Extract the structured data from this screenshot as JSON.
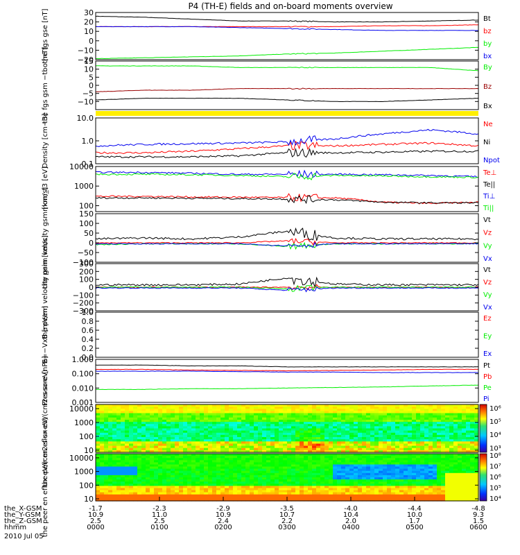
{
  "title": "P4 (TH-E) fields and on-board moments overview",
  "date": "2010 Jul 05",
  "colors": {
    "black": "#000000",
    "red": "#ff0000",
    "green": "#00ee00",
    "blue": "#0000ee",
    "darkred": "#990000",
    "yellow": "#ffee00"
  },
  "xaxis": {
    "row_labels": [
      "the_X-GSM",
      "the_Y-GSM",
      "the_Z-GSM",
      "hhmm"
    ],
    "ticks": [
      {
        "x": "-1.7",
        "y": "10.9",
        "z": "2.5",
        "hhmm": "0000"
      },
      {
        "x": "-2.3",
        "y": "11.0",
        "z": "2.5",
        "hhmm": "0100"
      },
      {
        "x": "-2.9",
        "y": "10.9",
        "z": "2.4",
        "hhmm": "0200"
      },
      {
        "x": "-3.5",
        "y": "10.7",
        "z": "2.2",
        "hhmm": "0300"
      },
      {
        "x": "-4.0",
        "y": "10.4",
        "z": "2.0",
        "hhmm": "0400"
      },
      {
        "x": "-4.4",
        "y": "10.0",
        "z": "1.7",
        "hhmm": "0500"
      },
      {
        "x": "-4.8",
        "y": "9.3",
        "z": "1.5",
        "hhmm": "0600"
      }
    ]
  },
  "chart_data": [
    {
      "type": "line",
      "id": "fgs_gse",
      "ylabel": "the fgs gse [nT]",
      "ylim": [
        -20,
        30
      ],
      "yticks": [
        "30",
        "20",
        "10",
        "0",
        "−10",
        "−20"
      ],
      "series": [
        {
          "name": "Bt",
          "color": "black",
          "values": [
            26,
            25,
            23,
            21,
            21,
            20,
            20,
            21,
            22
          ]
        },
        {
          "name": "bz",
          "color": "red",
          "values": [
            15,
            15,
            15,
            15,
            15,
            15,
            16,
            16,
            17
          ]
        },
        {
          "name": "by",
          "color": "green",
          "values": [
            -19,
            -18,
            -17,
            -16,
            -14,
            -13,
            -11,
            -9,
            -7
          ]
        },
        {
          "name": "bx",
          "color": "blue",
          "values": [
            15,
            15,
            15,
            14,
            13,
            12,
            11,
            11,
            11
          ]
        }
      ]
    },
    {
      "type": "line",
      "id": "fgs_gsm",
      "ylabel": "the fgs gsm −tbo [nT]",
      "ylim": [
        -15,
        15
      ],
      "yticks": [
        "15",
        "10",
        "5",
        "0",
        "−5",
        "−10"
      ],
      "series": [
        {
          "name": "By",
          "color": "green",
          "values": [
            12,
            12,
            12,
            11,
            11,
            11,
            11,
            11,
            9
          ]
        },
        {
          "name": "Bz",
          "color": "darkred",
          "values": [
            -4,
            -3,
            -3,
            -2,
            -2,
            -2,
            -2,
            -2,
            -2
          ]
        },
        {
          "name": "Bx",
          "color": "black",
          "values": [
            -9,
            -8,
            -8,
            -8,
            -9,
            -10,
            -10,
            -9,
            -8
          ]
        }
      ]
    },
    {
      "type": "line",
      "id": "density",
      "ylabel": "Density [cm−3]",
      "yscale": "log",
      "ylim": [
        0.1,
        10
      ],
      "yticks": [
        "10.0",
        "1.0",
        "0.1"
      ],
      "series": [
        {
          "name": "Ne",
          "color": "red",
          "values": [
            0.3,
            0.3,
            0.35,
            0.45,
            0.6,
            0.6,
            0.7,
            0.8,
            0.6
          ]
        },
        {
          "name": "Ni",
          "color": "black",
          "values": [
            0.2,
            0.2,
            0.2,
            0.22,
            0.3,
            0.3,
            0.32,
            0.35,
            0.35
          ]
        },
        {
          "name": "Npot",
          "color": "blue",
          "values": [
            0.6,
            0.7,
            0.75,
            0.8,
            0.9,
            1.2,
            2.0,
            3.0,
            2.0
          ]
        }
      ]
    },
    {
      "type": "line",
      "id": "mom_temp",
      "ylabel": "mom_t3 [eV]",
      "yscale": "log",
      "ylim": [
        50,
        10000
      ],
      "yticks": [
        "10000",
        "1000",
        "100"
      ],
      "series": [
        {
          "name": "Te⊥",
          "color": "red",
          "values": [
            300,
            300,
            280,
            270,
            260,
            250,
            150,
            130,
            150
          ]
        },
        {
          "name": "Te||",
          "color": "black",
          "values": [
            250,
            250,
            240,
            230,
            220,
            200,
            150,
            140,
            140
          ]
        },
        {
          "name": "Ti⊥",
          "color": "blue",
          "values": [
            5000,
            5000,
            4500,
            4000,
            4000,
            4000,
            3800,
            3500,
            3000
          ]
        },
        {
          "name": "Ti||",
          "color": "green",
          "values": [
            4000,
            4000,
            3800,
            3500,
            3000,
            3500,
            3300,
            3000,
            2800
          ]
        }
      ]
    },
    {
      "type": "line",
      "id": "peim_velocity",
      "ylabel": "the peim velocity gsm [km/s]",
      "ylim": [
        -100,
        150
      ],
      "yticks": [
        "150",
        "100",
        "50",
        "0",
        "−50",
        "−100"
      ],
      "series": [
        {
          "name": "Vt",
          "color": "black",
          "values": [
            20,
            25,
            20,
            30,
            60,
            25,
            20,
            20,
            20
          ]
        },
        {
          "name": "Vz",
          "color": "red",
          "values": [
            0,
            0,
            0,
            0,
            10,
            0,
            0,
            0,
            0
          ]
        },
        {
          "name": "Vy",
          "color": "green",
          "values": [
            -10,
            -5,
            -5,
            -5,
            -20,
            -5,
            -5,
            -5,
            -5
          ]
        },
        {
          "name": "Vx",
          "color": "blue",
          "values": [
            -5,
            -5,
            -5,
            -5,
            -15,
            -5,
            -5,
            -5,
            -5
          ]
        }
      ]
    },
    {
      "type": "line",
      "id": "peem_velocity",
      "ylabel": "the peem velocity gsm [km/s]",
      "ylim": [
        -300,
        300
      ],
      "yticks": [
        "300",
        "200",
        "100",
        "0",
        "−100",
        "−200",
        "−300"
      ],
      "series": [
        {
          "name": "Vt",
          "color": "black",
          "values": [
            30,
            30,
            30,
            40,
            120,
            40,
            30,
            30,
            30
          ]
        },
        {
          "name": "Vz",
          "color": "red",
          "values": [
            0,
            0,
            0,
            0,
            0,
            0,
            0,
            0,
            0
          ]
        },
        {
          "name": "Vy",
          "color": "green",
          "values": [
            0,
            0,
            0,
            0,
            -20,
            0,
            0,
            0,
            0
          ]
        },
        {
          "name": "Vx",
          "color": "blue",
          "values": [
            -10,
            -10,
            -10,
            -10,
            -40,
            -10,
            -10,
            -10,
            -10
          ]
        }
      ]
    },
    {
      "type": "line",
      "id": "efield",
      "ylabel": "E=−VxB [mV/m]",
      "ylim": [
        0,
        1
      ],
      "yticks": [
        "1.0",
        "0.8",
        "0.6",
        "0.4",
        "0.2",
        "0.0"
      ],
      "series": [
        {
          "name": "Ez",
          "color": "red",
          "values": []
        },
        {
          "name": "Ey",
          "color": "green",
          "values": []
        },
        {
          "name": "Ex",
          "color": "blue",
          "values": []
        }
      ]
    },
    {
      "type": "line",
      "id": "pressure",
      "ylabel": "Pressure [nPa]",
      "yscale": "log",
      "ylim": [
        0.001,
        1
      ],
      "yticks": [
        "1.000",
        "0.100",
        "0.010",
        "0.001"
      ],
      "series": [
        {
          "name": "Pt",
          "color": "black",
          "values": [
            0.4,
            0.4,
            0.35,
            0.35,
            0.3,
            0.3,
            0.3,
            0.3,
            0.3
          ]
        },
        {
          "name": "Pb",
          "color": "red",
          "values": [
            0.2,
            0.2,
            0.18,
            0.17,
            0.16,
            0.17,
            0.18,
            0.2,
            0.2
          ]
        },
        {
          "name": "Pe",
          "color": "green",
          "values": [
            0.008,
            0.008,
            0.009,
            0.009,
            0.01,
            0.011,
            0.012,
            0.014,
            0.016
          ]
        },
        {
          "name": "Pi",
          "color": "blue",
          "values": [
            0.15,
            0.15,
            0.15,
            0.14,
            0.13,
            0.13,
            0.12,
            0.12,
            0.12
          ]
        }
      ]
    },
    {
      "type": "heatmap",
      "id": "peir_eflux",
      "ylabel": "the peir en eflux eV/(cm2-s-sr-eV)",
      "yscale": "log",
      "ylim": [
        7,
        20000
      ],
      "yticks": [
        "10000",
        "1000",
        "100",
        "10"
      ],
      "colorbar": {
        "ticks": [
          "10⁶",
          "10⁵",
          "10⁴",
          "10³"
        ],
        "range_exp": [
          2.7,
          6.3
        ]
      }
    },
    {
      "type": "heatmap",
      "id": "peer_eflux",
      "ylabel": "the peer en eflux eV/(cm2-s-sr-eV)",
      "yscale": "log",
      "ylim": [
        7,
        20000
      ],
      "yticks": [
        "10000",
        "1000",
        "100",
        "10"
      ],
      "colorbar": {
        "ticks": [
          "10⁸",
          "10⁷",
          "10⁶",
          "10⁵",
          "10⁴"
        ],
        "range_exp": [
          3.8,
          8.2
        ]
      }
    }
  ]
}
